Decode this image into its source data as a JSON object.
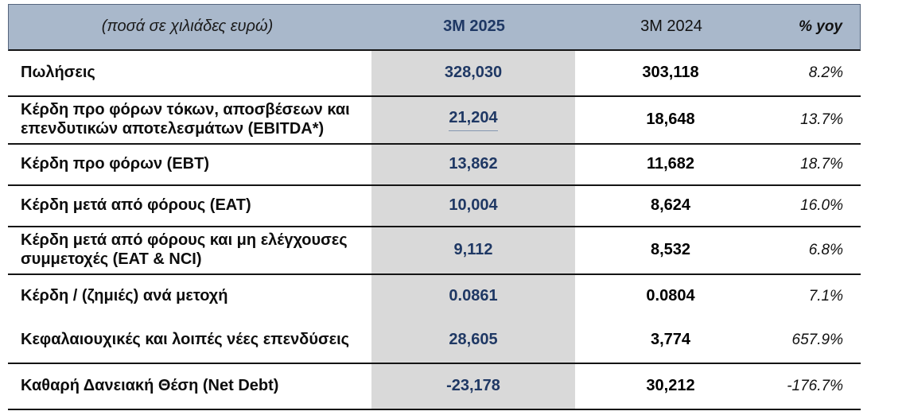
{
  "table": {
    "title_note": "(ποσά σε χιλιάδες ευρώ)",
    "columns": {
      "period_current": "3M 2025",
      "period_prior": "3M 2024",
      "yoy": "% yoy"
    },
    "colors": {
      "header_bg": "#a9b8cb",
      "highlight_column_bg": "#d9d9d9",
      "accent_navy": "#1f3864",
      "divider": "#141414",
      "accounting_underline": "#8496b0"
    },
    "rows": [
      {
        "label": "Πωλήσεις",
        "v2025": "328,030",
        "v2024": "303,118",
        "yoy": "8.2%",
        "v2025_underlined": false,
        "divider_below": true
      },
      {
        "label": "Κέρδη προ φόρων τόκων, αποσβέσεων και επενδυτικών αποτελεσμάτων (EBITDA*)",
        "v2025": "21,204",
        "v2024": "18,648",
        "yoy": "13.7%",
        "v2025_underlined": true,
        "divider_below": true
      },
      {
        "label": "Κέρδη προ φόρων (EBT)",
        "v2025": "13,862",
        "v2024": "11,682",
        "yoy": "18.7%",
        "v2025_underlined": false,
        "divider_below": true
      },
      {
        "label": "Κέρδη μετά από φόρους (EAT)",
        "v2025": "10,004",
        "v2024": "8,624",
        "yoy": "16.0%",
        "v2025_underlined": false,
        "divider_below": true
      },
      {
        "label": "Κέρδη μετά από φόρους και μη ελέγχουσες συμμετοχές (EAT & NCI)",
        "v2025": "9,112",
        "v2024": "8,532",
        "yoy": "6.8%",
        "v2025_underlined": false,
        "divider_below": true
      },
      {
        "label": "Κέρδη / (ζημιές) ανά μετοχή",
        "v2025": "0.0861",
        "v2024": "0.0804",
        "yoy": "7.1%",
        "v2025_underlined": false,
        "divider_below": false
      },
      {
        "label": "Κεφαλαιουχικές και λοιπές νέες επενδύσεις",
        "v2025": "28,605",
        "v2024": "3,774",
        "yoy": "657.9%",
        "v2025_underlined": false,
        "divider_below": true
      },
      {
        "label": "Καθαρή Δανειακή Θέση (Net Debt)",
        "v2025": "-23,178",
        "v2024": "30,212",
        "yoy": "-176.7%",
        "v2025_underlined": false,
        "divider_below": true
      }
    ]
  }
}
